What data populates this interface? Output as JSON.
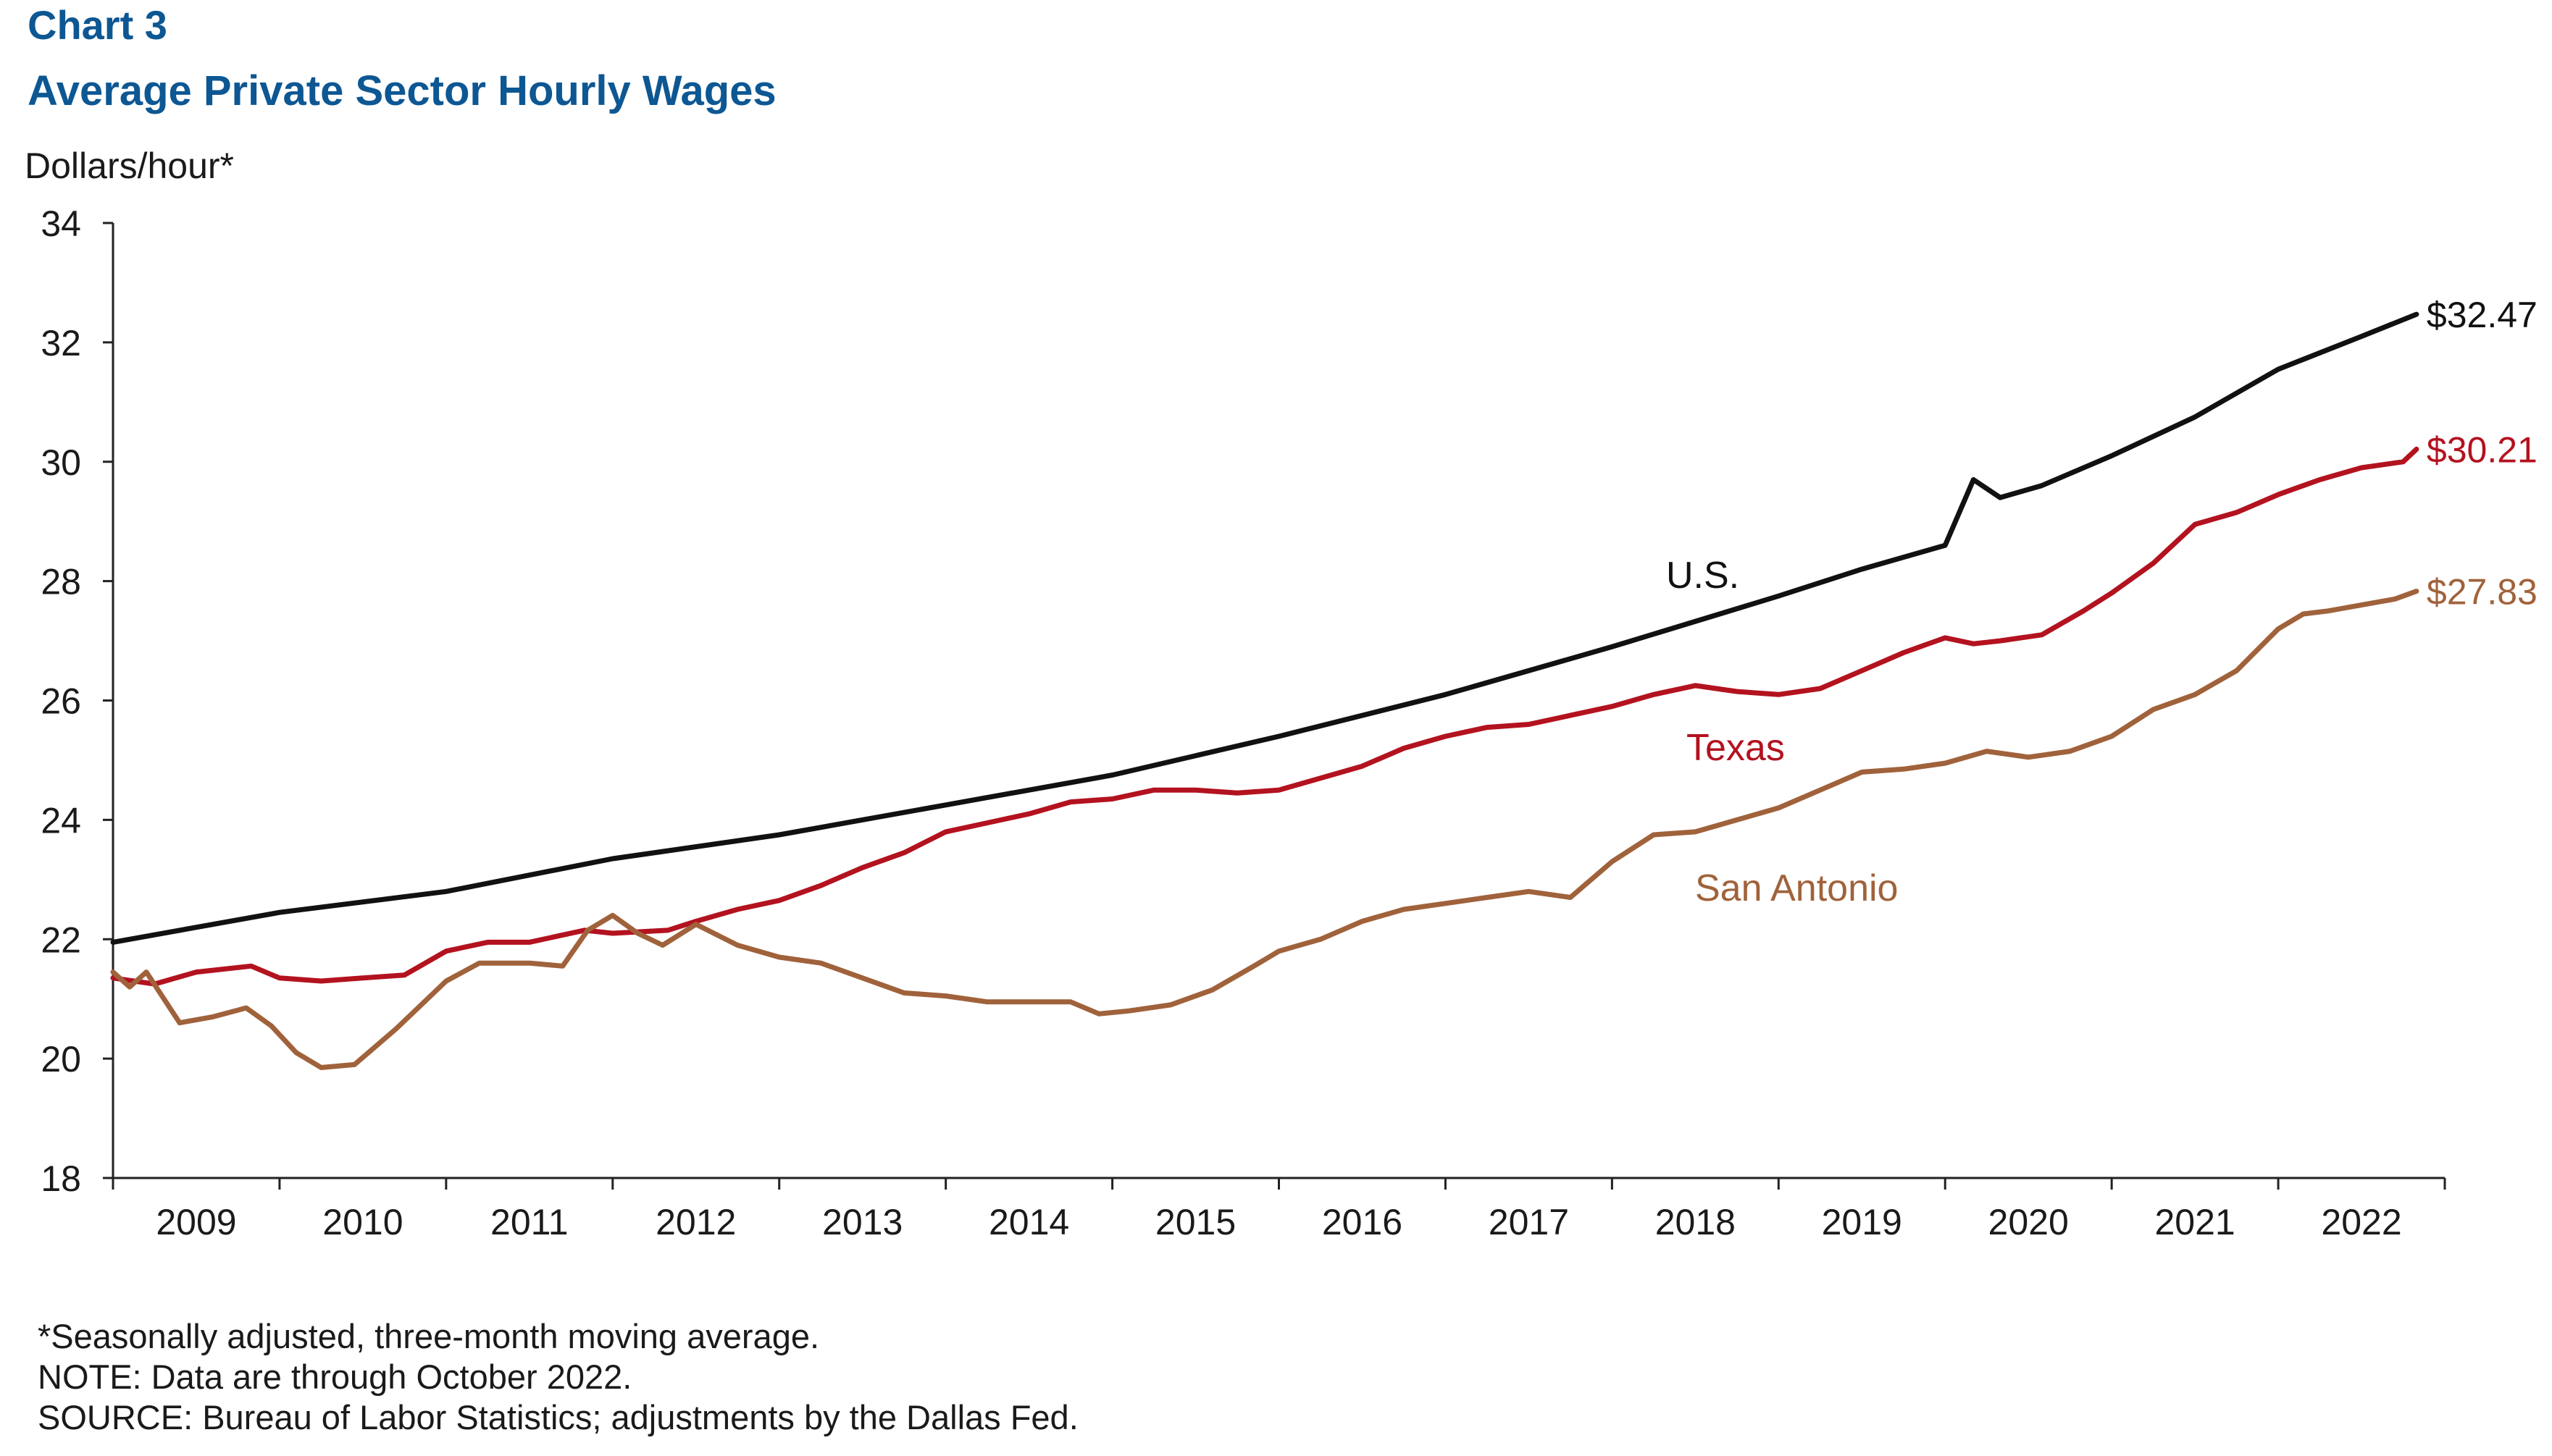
{
  "header": {
    "chart_number": "Chart 3",
    "title": "Average Private Sector Hourly Wages",
    "y_unit": "Dollars/hour*"
  },
  "notes": [
    "*Seasonally adjusted, three-month moving average.",
    "NOTE: Data are through October 2022.",
    "SOURCE: Bureau of Labor Statistics; adjustments by the Dallas Fed."
  ],
  "colors": {
    "title": "#0d5793",
    "us": "#111111",
    "texas": "#b3121f",
    "san_antonio": "#a0623b",
    "axis": "#222222"
  },
  "chart_data": {
    "type": "line",
    "title": "Average Private Sector Hourly Wages",
    "ylabel": "Dollars/hour*",
    "xlabel": "",
    "ylim": [
      18,
      34
    ],
    "yticks": [
      18,
      20,
      22,
      24,
      26,
      28,
      30,
      32,
      34
    ],
    "x_start": 2009.0,
    "x_end": 2023.0,
    "year_labels": [
      "2009",
      "2010",
      "2011",
      "2012",
      "2013",
      "2014",
      "2015",
      "2016",
      "2017",
      "2018",
      "2019",
      "2020",
      "2021",
      "2022"
    ],
    "grid": false,
    "series": [
      {
        "name": "U.S.",
        "color_key": "us",
        "end_label": "$32.47",
        "points": [
          [
            2009.0,
            21.95
          ],
          [
            2010.0,
            22.45
          ],
          [
            2011.0,
            22.8
          ],
          [
            2012.0,
            23.35
          ],
          [
            2013.0,
            23.75
          ],
          [
            2014.0,
            24.25
          ],
          [
            2015.0,
            24.75
          ],
          [
            2016.0,
            25.4
          ],
          [
            2017.0,
            26.1
          ],
          [
            2018.0,
            26.9
          ],
          [
            2019.0,
            27.75
          ],
          [
            2019.5,
            28.2
          ],
          [
            2020.0,
            28.6
          ],
          [
            2020.17,
            29.7
          ],
          [
            2020.33,
            29.4
          ],
          [
            2020.58,
            29.6
          ],
          [
            2021.0,
            30.1
          ],
          [
            2021.5,
            30.75
          ],
          [
            2022.0,
            31.55
          ],
          [
            2022.5,
            32.1
          ],
          [
            2022.83,
            32.47
          ]
        ]
      },
      {
        "name": "Texas",
        "color_key": "texas",
        "end_label": "$30.21",
        "points": [
          [
            2009.0,
            21.35
          ],
          [
            2009.25,
            21.25
          ],
          [
            2009.5,
            21.45
          ],
          [
            2009.83,
            21.55
          ],
          [
            2010.0,
            21.35
          ],
          [
            2010.25,
            21.3
          ],
          [
            2010.5,
            21.35
          ],
          [
            2010.75,
            21.4
          ],
          [
            2011.0,
            21.8
          ],
          [
            2011.25,
            21.95
          ],
          [
            2011.5,
            21.95
          ],
          [
            2011.83,
            22.15
          ],
          [
            2012.0,
            22.1
          ],
          [
            2012.33,
            22.15
          ],
          [
            2012.5,
            22.3
          ],
          [
            2012.75,
            22.5
          ],
          [
            2013.0,
            22.65
          ],
          [
            2013.25,
            22.9
          ],
          [
            2013.5,
            23.2
          ],
          [
            2013.75,
            23.45
          ],
          [
            2014.0,
            23.8
          ],
          [
            2014.25,
            23.95
          ],
          [
            2014.5,
            24.1
          ],
          [
            2014.75,
            24.3
          ],
          [
            2015.0,
            24.35
          ],
          [
            2015.25,
            24.5
          ],
          [
            2015.5,
            24.5
          ],
          [
            2015.75,
            24.45
          ],
          [
            2016.0,
            24.5
          ],
          [
            2016.25,
            24.7
          ],
          [
            2016.5,
            24.9
          ],
          [
            2016.75,
            25.2
          ],
          [
            2017.0,
            25.4
          ],
          [
            2017.25,
            25.55
          ],
          [
            2017.5,
            25.6
          ],
          [
            2017.75,
            25.75
          ],
          [
            2018.0,
            25.9
          ],
          [
            2018.25,
            26.1
          ],
          [
            2018.5,
            26.25
          ],
          [
            2018.75,
            26.15
          ],
          [
            2019.0,
            26.1
          ],
          [
            2019.25,
            26.2
          ],
          [
            2019.5,
            26.5
          ],
          [
            2019.75,
            26.8
          ],
          [
            2020.0,
            27.05
          ],
          [
            2020.17,
            26.95
          ],
          [
            2020.33,
            27.0
          ],
          [
            2020.58,
            27.1
          ],
          [
            2020.83,
            27.5
          ],
          [
            2021.0,
            27.8
          ],
          [
            2021.25,
            28.3
          ],
          [
            2021.5,
            28.95
          ],
          [
            2021.75,
            29.15
          ],
          [
            2022.0,
            29.45
          ],
          [
            2022.25,
            29.7
          ],
          [
            2022.5,
            29.9
          ],
          [
            2022.75,
            30.0
          ],
          [
            2022.83,
            30.21
          ]
        ]
      },
      {
        "name": "San Antonio",
        "color_key": "san_antonio",
        "end_label": "$27.83",
        "points": [
          [
            2009.0,
            21.45
          ],
          [
            2009.1,
            21.2
          ],
          [
            2009.2,
            21.45
          ],
          [
            2009.4,
            20.6
          ],
          [
            2009.6,
            20.7
          ],
          [
            2009.8,
            20.85
          ],
          [
            2009.95,
            20.55
          ],
          [
            2010.1,
            20.1
          ],
          [
            2010.25,
            19.85
          ],
          [
            2010.45,
            19.9
          ],
          [
            2010.7,
            20.5
          ],
          [
            2011.0,
            21.3
          ],
          [
            2011.2,
            21.6
          ],
          [
            2011.5,
            21.6
          ],
          [
            2011.7,
            21.55
          ],
          [
            2011.85,
            22.15
          ],
          [
            2012.0,
            22.4
          ],
          [
            2012.15,
            22.1
          ],
          [
            2012.3,
            21.9
          ],
          [
            2012.5,
            22.25
          ],
          [
            2012.75,
            21.9
          ],
          [
            2013.0,
            21.7
          ],
          [
            2013.25,
            21.6
          ],
          [
            2013.5,
            21.35
          ],
          [
            2013.75,
            21.1
          ],
          [
            2014.0,
            21.05
          ],
          [
            2014.25,
            20.95
          ],
          [
            2014.5,
            20.95
          ],
          [
            2014.75,
            20.95
          ],
          [
            2014.92,
            20.75
          ],
          [
            2015.1,
            20.8
          ],
          [
            2015.35,
            20.9
          ],
          [
            2015.6,
            21.15
          ],
          [
            2015.85,
            21.55
          ],
          [
            2016.0,
            21.8
          ],
          [
            2016.25,
            22.0
          ],
          [
            2016.5,
            22.3
          ],
          [
            2016.75,
            22.5
          ],
          [
            2017.0,
            22.6
          ],
          [
            2017.25,
            22.7
          ],
          [
            2017.5,
            22.8
          ],
          [
            2017.75,
            22.7
          ],
          [
            2018.0,
            23.3
          ],
          [
            2018.25,
            23.75
          ],
          [
            2018.5,
            23.8
          ],
          [
            2018.75,
            24.0
          ],
          [
            2019.0,
            24.2
          ],
          [
            2019.25,
            24.5
          ],
          [
            2019.5,
            24.8
          ],
          [
            2019.75,
            24.85
          ],
          [
            2020.0,
            24.95
          ],
          [
            2020.25,
            25.15
          ],
          [
            2020.5,
            25.05
          ],
          [
            2020.75,
            25.15
          ],
          [
            2021.0,
            25.4
          ],
          [
            2021.25,
            25.85
          ],
          [
            2021.5,
            26.1
          ],
          [
            2021.75,
            26.5
          ],
          [
            2022.0,
            27.2
          ],
          [
            2022.15,
            27.45
          ],
          [
            2022.3,
            27.5
          ],
          [
            2022.5,
            27.6
          ],
          [
            2022.7,
            27.7
          ],
          [
            2022.83,
            27.83
          ]
        ]
      }
    ],
    "annotations": [
      {
        "text": "U.S.",
        "series": "U.S."
      },
      {
        "text": "Texas",
        "series": "Texas"
      },
      {
        "text": "San Antonio",
        "series": "San Antonio"
      }
    ]
  }
}
